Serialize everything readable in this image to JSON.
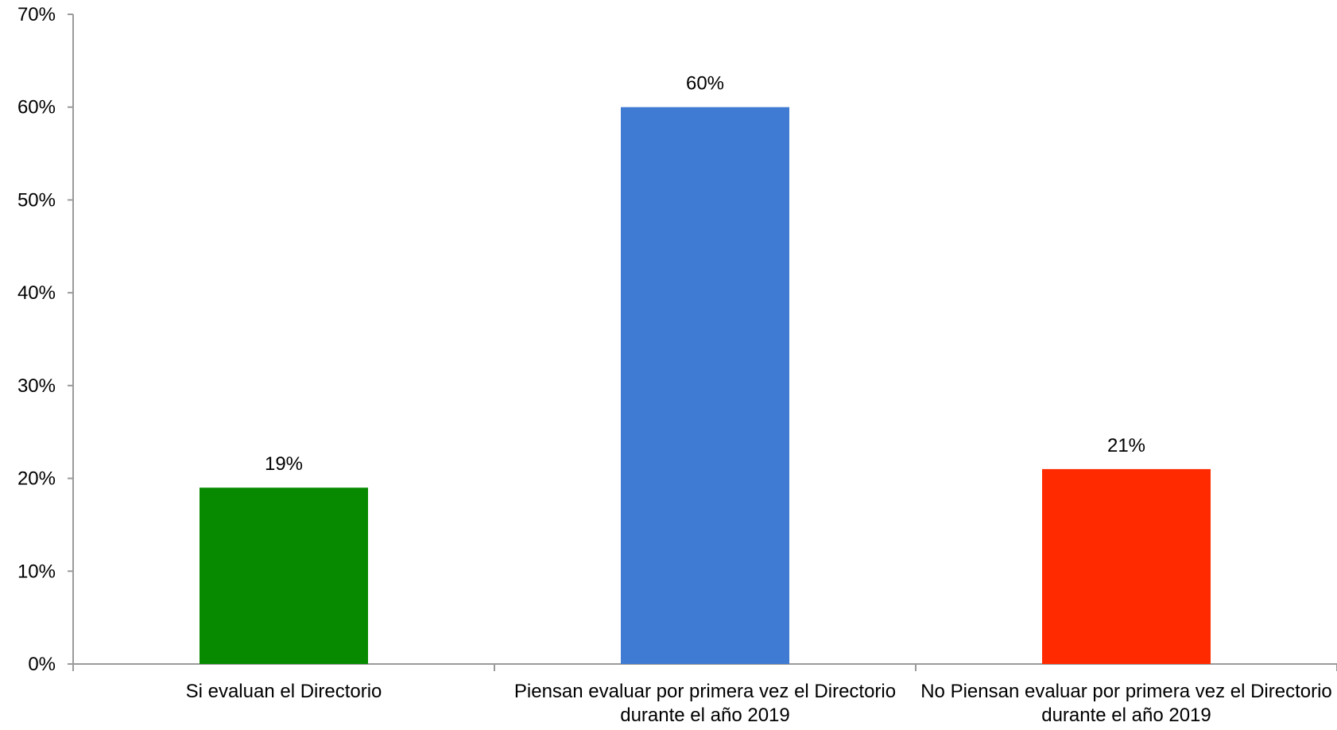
{
  "chart_data": {
    "type": "bar",
    "categories": [
      "Si evaluan el Directorio",
      "Piensan evaluar por primera vez el Directorio durante el año 2019",
      "No Piensan evaluar por primera vez el Directorio durante el año 2019"
    ],
    "values": [
      19,
      60,
      21
    ],
    "value_labels": [
      "19%",
      "60%",
      "21%"
    ],
    "bar_colors": [
      "#078a00",
      "#3f7bd3",
      "#ff2a00"
    ],
    "y_ticks": [
      "0%",
      "10%",
      "20%",
      "30%",
      "40%",
      "50%",
      "60%",
      "70%"
    ],
    "ylim": [
      0,
      70
    ],
    "grid": false,
    "legend": "none",
    "axis_color": "#9a9a9a"
  }
}
